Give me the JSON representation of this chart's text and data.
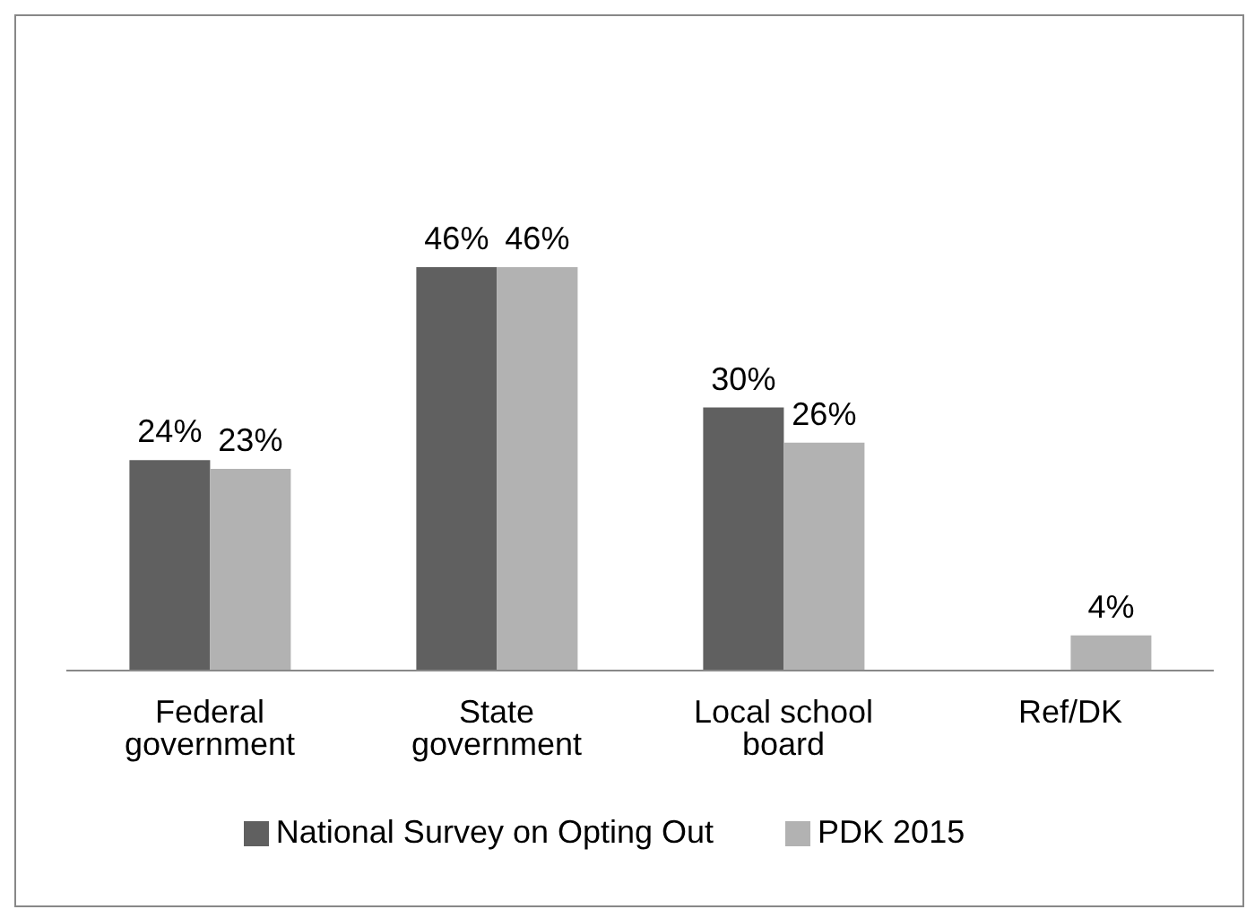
{
  "chart_data": {
    "type": "bar",
    "categories": [
      "Federal government",
      "State government",
      "Local school board",
      "Ref/DK"
    ],
    "series": [
      {
        "name": "National Survey on Opting Out",
        "color": "#606060",
        "values": [
          24,
          46,
          30,
          null
        ],
        "value_labels": [
          "24%",
          "46%",
          "30%",
          null
        ]
      },
      {
        "name": "PDK 2015",
        "color": "#b2b2b2",
        "values": [
          23,
          46,
          26,
          4
        ],
        "value_labels": [
          "23%",
          "46%",
          "26%",
          "4%"
        ]
      }
    ],
    "grid": false,
    "legend": "bottom"
  }
}
